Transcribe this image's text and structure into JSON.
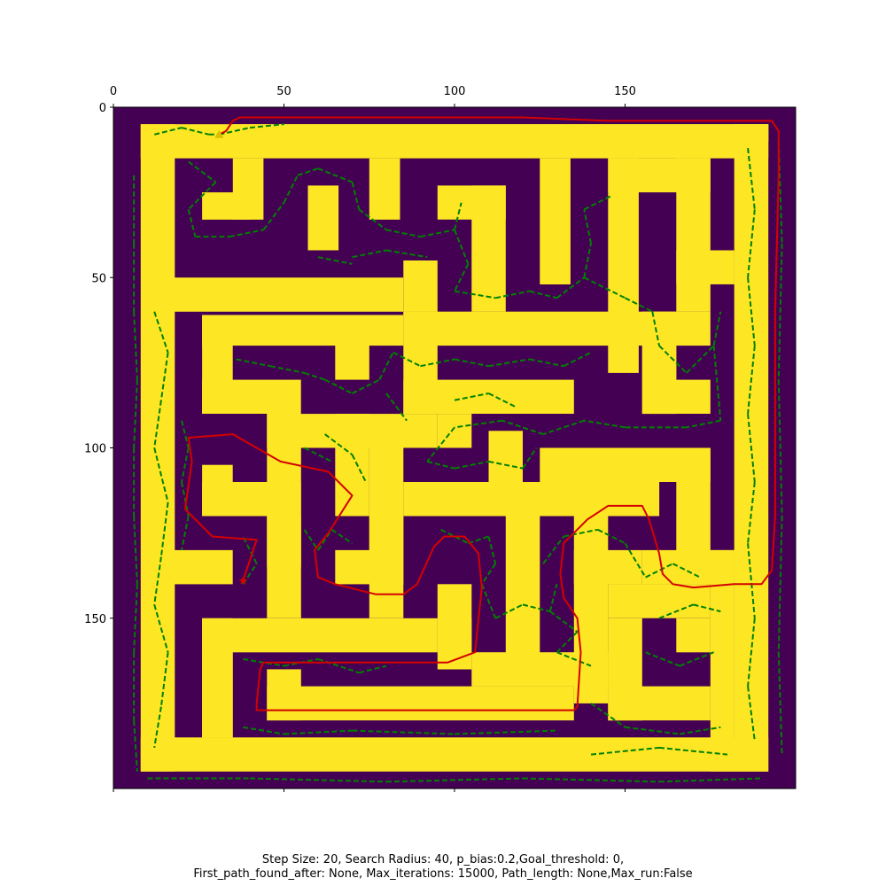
{
  "chart_data": {
    "type": "heatmap",
    "description_of_layers": [
      "maze occupancy image",
      "sampled tree edges",
      "planned path"
    ],
    "x_ticks": [
      0,
      50,
      100,
      150
    ],
    "y_ticks": [
      0,
      50,
      100,
      150
    ],
    "x_ticks_bottom": [
      0,
      50,
      100,
      150
    ],
    "xlim": [
      0,
      200
    ],
    "ylim": [
      200,
      0
    ],
    "x_axis_position": "top",
    "grid": false,
    "legend": "none",
    "colors": {
      "wall": "#440154",
      "free": "#fde725",
      "tree": "#008000",
      "path": "#d40000",
      "start_marker": "#d4c000",
      "goal_marker": "#d40000"
    },
    "free_cells": [
      [
        8,
        5,
        192,
        15
      ],
      [
        8,
        5,
        18,
        195
      ],
      [
        8,
        185,
        192,
        195
      ],
      [
        182,
        5,
        192,
        195
      ],
      [
        35,
        5,
        192,
        10
      ],
      [
        17,
        50,
        85,
        60
      ],
      [
        17,
        130,
        35,
        140
      ],
      [
        26,
        25,
        40,
        33
      ],
      [
        35,
        15,
        44,
        33
      ],
      [
        57,
        23,
        66,
        42
      ],
      [
        75,
        15,
        84,
        33
      ],
      [
        95,
        23,
        115,
        33
      ],
      [
        105,
        23,
        115,
        60
      ],
      [
        85,
        45,
        95,
        60
      ],
      [
        125,
        15,
        134,
        52
      ],
      [
        145,
        15,
        175,
        25
      ],
      [
        145,
        15,
        154,
        78
      ],
      [
        165,
        15,
        175,
        60
      ],
      [
        165,
        42,
        182,
        52
      ],
      [
        26,
        61,
        85,
        70
      ],
      [
        26,
        61,
        35,
        90
      ],
      [
        26,
        80,
        55,
        90
      ],
      [
        65,
        61,
        75,
        80
      ],
      [
        85,
        60,
        175,
        70
      ],
      [
        85,
        60,
        95,
        90
      ],
      [
        85,
        80,
        135,
        90
      ],
      [
        155,
        70,
        165,
        90
      ],
      [
        155,
        80,
        175,
        90
      ],
      [
        155,
        60,
        165,
        80
      ],
      [
        45,
        90,
        95,
        100
      ],
      [
        45,
        90,
        55,
        135
      ],
      [
        65,
        90,
        75,
        120
      ],
      [
        75,
        100,
        85,
        130
      ],
      [
        85,
        110,
        160,
        120
      ],
      [
        95,
        90,
        105,
        100
      ],
      [
        110,
        95,
        120,
        110
      ],
      [
        125,
        100,
        175,
        110
      ],
      [
        165,
        100,
        175,
        135
      ],
      [
        175,
        130,
        182,
        140
      ],
      [
        26,
        105,
        35,
        120
      ],
      [
        26,
        110,
        55,
        120
      ],
      [
        45,
        120,
        55,
        150
      ],
      [
        26,
        150,
        95,
        160
      ],
      [
        26,
        150,
        35,
        185
      ],
      [
        65,
        130,
        85,
        140
      ],
      [
        75,
        120,
        85,
        150
      ],
      [
        95,
        140,
        105,
        160
      ],
      [
        95,
        150,
        105,
        165
      ],
      [
        105,
        160,
        145,
        170
      ],
      [
        115,
        120,
        125,
        165
      ],
      [
        135,
        120,
        145,
        175
      ],
      [
        135,
        130,
        155,
        140
      ],
      [
        155,
        130,
        182,
        140
      ],
      [
        45,
        170,
        135,
        180
      ],
      [
        45,
        165,
        55,
        180
      ],
      [
        145,
        140,
        175,
        150
      ],
      [
        145,
        150,
        155,
        180
      ],
      [
        145,
        170,
        175,
        180
      ],
      [
        165,
        150,
        175,
        160
      ],
      [
        175,
        140,
        182,
        195
      ],
      [
        26,
        160,
        35,
        185
      ]
    ],
    "tree_edges": [
      [
        12,
        8,
        20,
        6
      ],
      [
        20,
        6,
        28,
        8
      ],
      [
        28,
        8,
        31,
        8
      ],
      [
        31,
        8,
        40,
        6
      ],
      [
        40,
        6,
        50,
        5
      ],
      [
        6,
        20,
        6,
        40
      ],
      [
        6,
        40,
        6,
        60
      ],
      [
        6,
        60,
        7,
        80
      ],
      [
        7,
        80,
        6,
        100
      ],
      [
        6,
        100,
        6,
        120
      ],
      [
        6,
        120,
        7,
        140
      ],
      [
        7,
        140,
        6,
        160
      ],
      [
        6,
        160,
        6,
        180
      ],
      [
        6,
        180,
        7,
        195
      ],
      [
        10,
        197,
        40,
        197
      ],
      [
        40,
        197,
        80,
        198
      ],
      [
        80,
        198,
        120,
        197
      ],
      [
        120,
        197,
        160,
        198
      ],
      [
        160,
        198,
        190,
        197
      ],
      [
        195,
        10,
        196,
        40
      ],
      [
        196,
        40,
        195,
        80
      ],
      [
        195,
        80,
        196,
        120
      ],
      [
        196,
        120,
        195,
        160
      ],
      [
        195,
        160,
        196,
        190
      ],
      [
        22,
        16,
        30,
        22
      ],
      [
        30,
        22,
        22,
        30
      ],
      [
        22,
        30,
        24,
        38
      ],
      [
        24,
        38,
        34,
        38
      ],
      [
        34,
        38,
        44,
        36
      ],
      [
        44,
        36,
        50,
        28
      ],
      [
        50,
        28,
        54,
        20
      ],
      [
        54,
        20,
        60,
        18
      ],
      [
        60,
        18,
        70,
        22
      ],
      [
        70,
        22,
        72,
        30
      ],
      [
        72,
        30,
        80,
        36
      ],
      [
        80,
        36,
        90,
        38
      ],
      [
        90,
        38,
        100,
        36
      ],
      [
        100,
        36,
        102,
        28
      ],
      [
        100,
        36,
        104,
        46
      ],
      [
        104,
        46,
        100,
        54
      ],
      [
        100,
        54,
        112,
        56
      ],
      [
        112,
        56,
        122,
        54
      ],
      [
        122,
        54,
        130,
        56
      ],
      [
        130,
        56,
        138,
        50
      ],
      [
        138,
        50,
        140,
        40
      ],
      [
        140,
        40,
        138,
        30
      ],
      [
        138,
        30,
        146,
        26
      ],
      [
        138,
        50,
        150,
        56
      ],
      [
        150,
        56,
        158,
        60
      ],
      [
        158,
        60,
        160,
        70
      ],
      [
        160,
        70,
        168,
        78
      ],
      [
        168,
        78,
        176,
        70
      ],
      [
        176,
        70,
        178,
        60
      ],
      [
        176,
        70,
        178,
        92
      ],
      [
        178,
        92,
        168,
        94
      ],
      [
        168,
        94,
        150,
        94
      ],
      [
        150,
        94,
        138,
        92
      ],
      [
        138,
        92,
        126,
        96
      ],
      [
        126,
        96,
        114,
        92
      ],
      [
        114,
        92,
        100,
        94
      ],
      [
        100,
        94,
        92,
        104
      ],
      [
        92,
        104,
        100,
        106
      ],
      [
        100,
        106,
        110,
        104
      ],
      [
        110,
        104,
        120,
        106
      ],
      [
        120,
        106,
        124,
        100
      ],
      [
        36,
        74,
        46,
        76
      ],
      [
        46,
        76,
        56,
        78
      ],
      [
        56,
        78,
        62,
        80
      ],
      [
        62,
        80,
        70,
        84
      ],
      [
        70,
        84,
        78,
        80
      ],
      [
        78,
        80,
        82,
        72
      ],
      [
        82,
        72,
        90,
        76
      ],
      [
        90,
        76,
        100,
        74
      ],
      [
        100,
        74,
        110,
        76
      ],
      [
        110,
        76,
        122,
        74
      ],
      [
        122,
        74,
        132,
        76
      ],
      [
        132,
        76,
        140,
        72
      ],
      [
        80,
        84,
        86,
        92
      ],
      [
        62,
        96,
        70,
        102
      ],
      [
        70,
        102,
        74,
        110
      ],
      [
        56,
        124,
        60,
        130
      ],
      [
        60,
        130,
        64,
        124
      ],
      [
        64,
        124,
        70,
        128
      ],
      [
        96,
        124,
        104,
        128
      ],
      [
        104,
        128,
        110,
        126
      ],
      [
        110,
        126,
        112,
        134
      ],
      [
        112,
        134,
        108,
        140
      ],
      [
        108,
        140,
        112,
        150
      ],
      [
        112,
        150,
        120,
        146
      ],
      [
        120,
        146,
        128,
        148
      ],
      [
        128,
        148,
        130,
        140
      ],
      [
        128,
        148,
        136,
        154
      ],
      [
        136,
        154,
        130,
        160
      ],
      [
        130,
        160,
        140,
        164
      ],
      [
        38,
        162,
        50,
        164
      ],
      [
        50,
        164,
        60,
        162
      ],
      [
        60,
        162,
        72,
        166
      ],
      [
        72,
        166,
        80,
        164
      ],
      [
        38,
        182,
        50,
        184
      ],
      [
        50,
        184,
        70,
        183
      ],
      [
        70,
        183,
        100,
        184
      ],
      [
        100,
        184,
        130,
        183
      ],
      [
        140,
        190,
        160,
        188
      ],
      [
        160,
        188,
        180,
        190
      ],
      [
        140,
        175,
        150,
        182
      ],
      [
        150,
        182,
        166,
        184
      ],
      [
        166,
        184,
        178,
        182
      ],
      [
        160,
        150,
        170,
        146
      ],
      [
        170,
        146,
        178,
        148
      ],
      [
        156,
        160,
        166,
        164
      ],
      [
        166,
        164,
        176,
        160
      ],
      [
        126,
        134,
        132,
        126
      ],
      [
        132,
        126,
        142,
        124
      ],
      [
        142,
        124,
        150,
        128
      ],
      [
        150,
        128,
        156,
        138
      ],
      [
        156,
        138,
        164,
        134
      ],
      [
        164,
        134,
        172,
        138
      ],
      [
        20,
        92,
        22,
        100
      ],
      [
        22,
        100,
        20,
        110
      ],
      [
        20,
        110,
        22,
        120
      ],
      [
        22,
        120,
        20,
        130
      ],
      [
        100,
        86,
        110,
        84
      ],
      [
        110,
        84,
        118,
        88
      ],
      [
        56,
        100,
        64,
        104
      ],
      [
        38,
        140,
        42,
        134
      ],
      [
        42,
        134,
        38,
        126
      ],
      [
        12,
        60,
        16,
        72
      ],
      [
        16,
        72,
        14,
        86
      ],
      [
        14,
        86,
        12,
        100
      ],
      [
        12,
        100,
        16,
        116
      ],
      [
        16,
        116,
        14,
        132
      ],
      [
        14,
        132,
        12,
        146
      ],
      [
        12,
        146,
        16,
        160
      ],
      [
        16,
        160,
        14,
        176
      ],
      [
        14,
        176,
        12,
        188
      ],
      [
        186,
        12,
        188,
        30
      ],
      [
        188,
        30,
        186,
        50
      ],
      [
        186,
        50,
        188,
        70
      ],
      [
        188,
        70,
        186,
        90
      ],
      [
        186,
        90,
        188,
        110
      ],
      [
        188,
        110,
        186,
        128
      ],
      [
        186,
        128,
        188,
        150
      ],
      [
        188,
        150,
        186,
        170
      ],
      [
        186,
        170,
        188,
        186
      ],
      [
        60,
        44,
        70,
        46
      ],
      [
        70,
        44,
        80,
        42
      ],
      [
        80,
        42,
        92,
        44
      ]
    ],
    "path": [
      [
        38,
        139
      ],
      [
        42,
        127
      ],
      [
        29,
        126
      ],
      [
        21,
        118
      ],
      [
        23,
        104
      ],
      [
        22,
        97
      ],
      [
        35,
        96
      ],
      [
        49,
        104
      ],
      [
        63,
        107
      ],
      [
        70,
        114
      ],
      [
        63,
        125
      ],
      [
        59,
        130
      ],
      [
        60,
        138
      ],
      [
        65,
        140
      ],
      [
        77,
        143
      ],
      [
        85,
        143
      ],
      [
        89,
        140
      ],
      [
        94,
        129
      ],
      [
        97,
        126
      ],
      [
        103,
        126
      ],
      [
        107,
        131
      ],
      [
        108,
        141
      ],
      [
        106,
        160
      ],
      [
        98,
        163
      ],
      [
        78,
        163
      ],
      [
        64,
        163
      ],
      [
        47,
        163
      ],
      [
        44,
        163
      ],
      [
        43,
        165
      ],
      [
        42,
        175
      ],
      [
        42,
        177
      ],
      [
        60,
        177
      ],
      [
        76,
        177
      ],
      [
        98,
        177
      ],
      [
        120,
        177
      ],
      [
        135,
        177
      ],
      [
        136,
        176
      ],
      [
        137,
        160
      ],
      [
        136,
        150
      ],
      [
        132,
        144
      ],
      [
        131,
        137
      ],
      [
        132,
        128
      ],
      [
        139,
        121
      ],
      [
        145,
        117
      ],
      [
        150,
        117
      ],
      [
        155,
        117
      ],
      [
        157,
        121
      ],
      [
        160,
        131
      ],
      [
        161,
        137
      ],
      [
        164,
        140
      ],
      [
        170,
        141
      ],
      [
        182,
        140
      ],
      [
        190,
        140
      ],
      [
        193,
        136
      ],
      [
        194,
        120
      ],
      [
        194,
        100
      ],
      [
        194,
        80
      ],
      [
        194,
        60
      ],
      [
        195,
        20
      ],
      [
        195,
        7
      ],
      [
        193,
        4
      ],
      [
        184,
        4
      ],
      [
        165,
        4
      ],
      [
        145,
        4
      ],
      [
        120,
        3
      ],
      [
        95,
        3
      ],
      [
        70,
        3
      ],
      [
        50,
        3
      ],
      [
        37,
        3
      ],
      [
        35,
        4
      ],
      [
        33,
        7
      ],
      [
        31,
        8
      ]
    ],
    "start": [
      31,
      8
    ],
    "goal": [
      38,
      139
    ]
  },
  "caption": {
    "line1": "Step Size: 20, Search Radius: 40, p_bias:0.2,Goal_threshold: 0,",
    "line2": "First_path_found_after: None, Max_iterations: 15000, Path_length: None,Max_run:False"
  }
}
